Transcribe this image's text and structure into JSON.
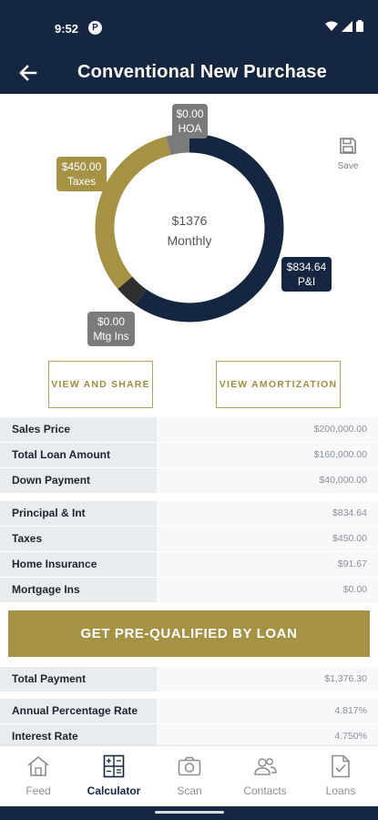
{
  "status": {
    "time": "9:52",
    "app_badge": "P"
  },
  "header": {
    "title": "Conventional New Purchase"
  },
  "chart": {
    "total": "$1376",
    "period": "Monthly",
    "slices": [
      {
        "name": "P&I",
        "value": 834.64,
        "color": "#152640"
      },
      {
        "name": "Mtg Ins",
        "value": 0,
        "color": "#2f2f2f"
      },
      {
        "name": "Taxes",
        "value": 450.0,
        "color": "#a59245"
      },
      {
        "name": "HOA",
        "value": 0,
        "color": "#7b7b7b"
      }
    ],
    "labels": {
      "hoa": {
        "amount": "$0.00",
        "name": "HOA"
      },
      "taxes": {
        "amount": "$450.00",
        "name": "Taxes"
      },
      "pi": {
        "amount": "$834.64",
        "name": "P&I"
      },
      "mtg": {
        "amount": "$0.00",
        "name": "Mtg Ins"
      }
    },
    "colors": {
      "navy": "#152640",
      "gold": "#a59245",
      "dark": "#2f2f2f",
      "grey": "#7b7b7b"
    }
  },
  "save": {
    "label": "Save"
  },
  "buttons": {
    "view_share": "VIEW AND SHARE",
    "view_amort": "VIEW AMORTIZATION"
  },
  "loan_rows": [
    {
      "label": "Sales Price",
      "value": "$200,000.00"
    },
    {
      "label": "Total Loan Amount",
      "value": "$160,000.00"
    },
    {
      "label": "Down Payment",
      "value": "$40,000.00"
    }
  ],
  "payment_rows": [
    {
      "label": "Principal & Int",
      "value": "$834.64"
    },
    {
      "label": "Taxes",
      "value": "$450.00"
    },
    {
      "label": "Home Insurance",
      "value": "$91.67"
    },
    {
      "label": "Mortgage Ins",
      "value": "$0.00"
    }
  ],
  "cta": {
    "label": "GET PRE-QUALIFIED BY LOAN"
  },
  "total_rows": [
    {
      "label": "Total Payment",
      "value": "$1,376.30"
    }
  ],
  "rate_rows": [
    {
      "label": "Annual Percentage Rate",
      "value": "4.817%"
    },
    {
      "label": "Interest Rate",
      "value": "4.750%"
    }
  ],
  "tabs": [
    {
      "label": "Feed",
      "icon": "home-icon"
    },
    {
      "label": "Calculator",
      "icon": "calculator-icon"
    },
    {
      "label": "Scan",
      "icon": "camera-icon"
    },
    {
      "label": "Contacts",
      "icon": "contacts-icon"
    },
    {
      "label": "Loans",
      "icon": "document-check-icon"
    }
  ]
}
